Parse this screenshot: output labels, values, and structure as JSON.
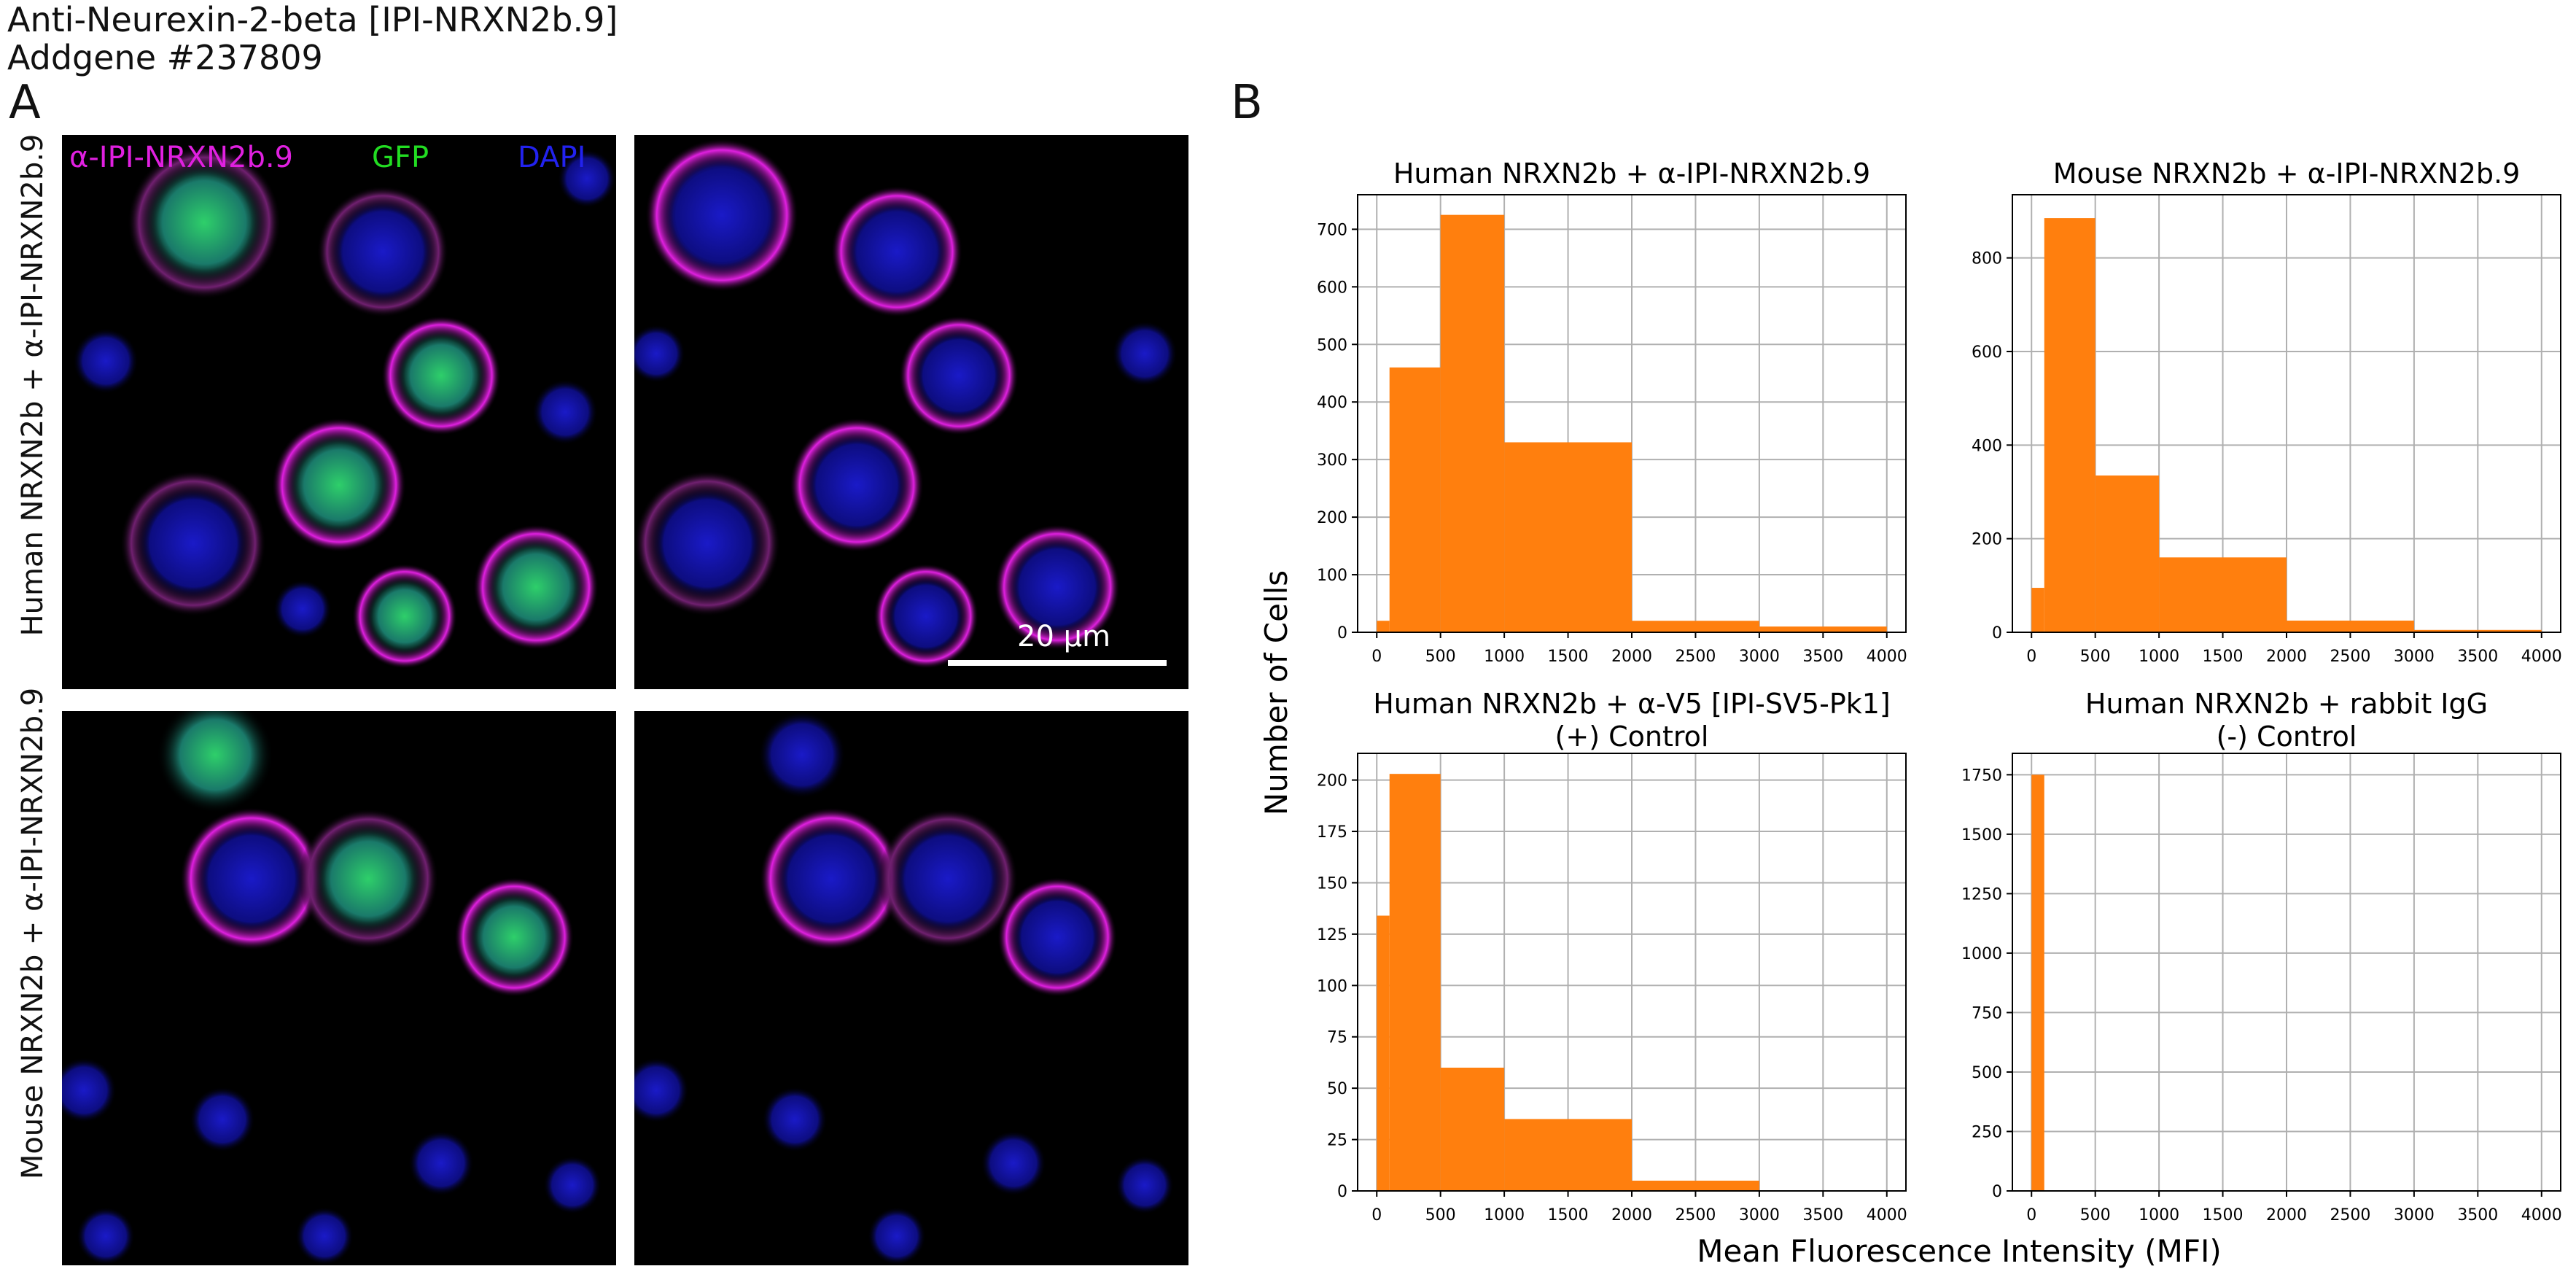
{
  "header": {
    "line1": "Anti-Neurexin-2-beta [IPI-NRXN2b.9]",
    "line2": "Addgene #237809"
  },
  "panel_a": {
    "letter": "A",
    "channels": [
      {
        "label": "α-IPI-NRXN2b.9",
        "color": "#e020e0"
      },
      {
        "label": "GFP",
        "color": "#22dd22"
      },
      {
        "label": "DAPI",
        "color": "#2222ee"
      }
    ],
    "row_labels": [
      "Human NRXN2b + α-IPI-NRXN2b.9",
      "Mouse NRXN2b + α-IPI-NRXN2b.9"
    ],
    "scalebar_label": "20 µm"
  },
  "panel_b": {
    "letter": "B",
    "shared_ylabel": "Number of Cells",
    "shared_xlabel": "Mean Fluorescence Intensity (MFI)",
    "bar_color": "#ff7f0e"
  },
  "chart_data": [
    {
      "type": "bar",
      "title": "Human NRXN2b + α-IPI-NRXN2b.9",
      "bin_edges": [
        0,
        100,
        500,
        1000,
        2000,
        3000,
        4000
      ],
      "values": [
        20,
        460,
        725,
        330,
        20,
        10
      ],
      "xlim": [
        -150,
        4150
      ],
      "ylim": [
        0,
        760
      ],
      "xticks": [
        0,
        500,
        1000,
        1500,
        2000,
        2500,
        3000,
        3500,
        4000
      ],
      "yticks": [
        0,
        100,
        200,
        300,
        400,
        500,
        600,
        700
      ],
      "grid": true
    },
    {
      "type": "bar",
      "title": "Mouse NRXN2b + α-IPI-NRXN2b.9",
      "bin_edges": [
        0,
        100,
        500,
        1000,
        2000,
        3000,
        4000
      ],
      "values": [
        95,
        885,
        335,
        160,
        25,
        5
      ],
      "xlim": [
        -150,
        4150
      ],
      "ylim": [
        0,
        935
      ],
      "xticks": [
        0,
        500,
        1000,
        1500,
        2000,
        2500,
        3000,
        3500,
        4000
      ],
      "yticks": [
        0,
        200,
        400,
        600,
        800
      ],
      "grid": true
    },
    {
      "type": "bar",
      "title": "Human NRXN2b + α-V5 [IPI-SV5-Pk1]",
      "subtitle": "(+) Control",
      "bin_edges": [
        0,
        100,
        500,
        1000,
        2000,
        3000,
        4000
      ],
      "values": [
        134,
        203,
        60,
        35,
        5,
        0
      ],
      "xlim": [
        -150,
        4150
      ],
      "ylim": [
        0,
        213
      ],
      "xticks": [
        0,
        500,
        1000,
        1500,
        2000,
        2500,
        3000,
        3500,
        4000
      ],
      "yticks": [
        0,
        25,
        50,
        75,
        100,
        125,
        150,
        175,
        200
      ],
      "grid": true
    },
    {
      "type": "bar",
      "title": "Human NRXN2b + rabbit IgG",
      "subtitle": "(-) Control",
      "bin_edges": [
        0,
        100,
        500,
        1000,
        2000,
        3000,
        4000
      ],
      "values": [
        1750,
        0,
        0,
        0,
        0,
        0
      ],
      "xlim": [
        -150,
        4150
      ],
      "ylim": [
        0,
        1840
      ],
      "xticks": [
        0,
        500,
        1000,
        1500,
        2000,
        2500,
        3000,
        3500,
        4000
      ],
      "yticks": [
        0,
        250,
        500,
        750,
        1000,
        1250,
        1500,
        1750
      ],
      "grid": true
    }
  ]
}
